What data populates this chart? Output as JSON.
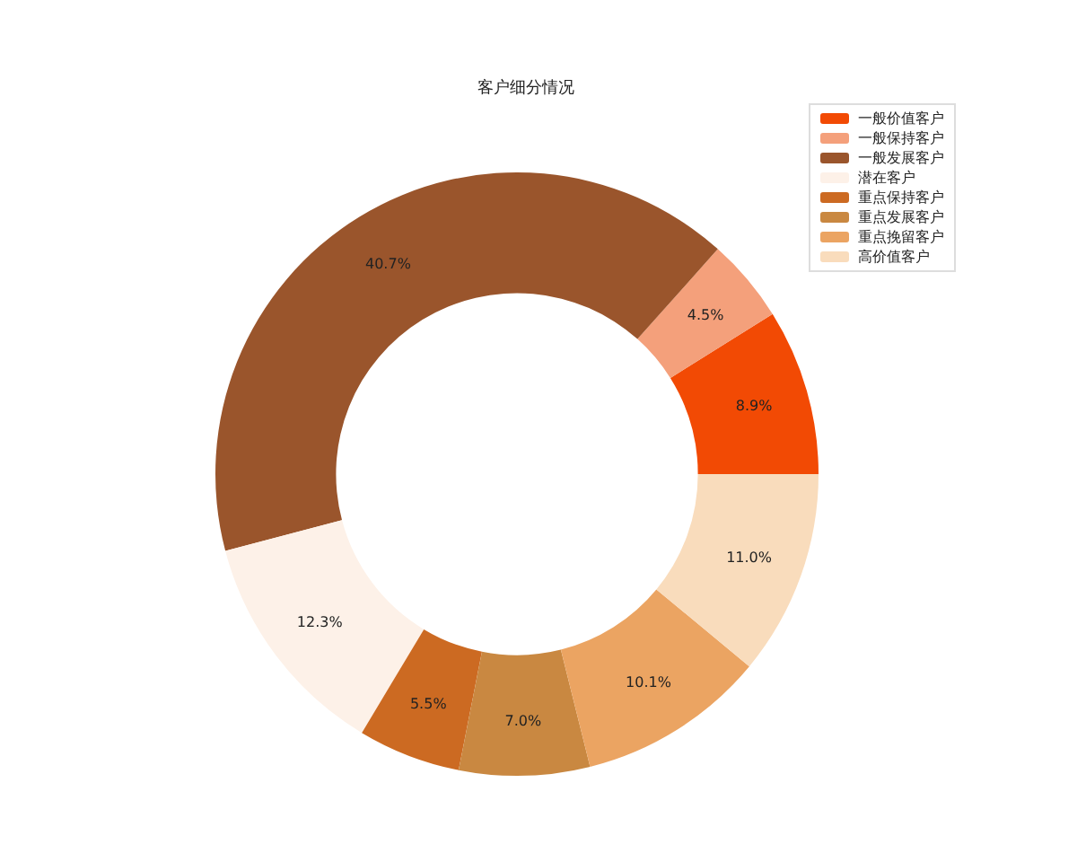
{
  "chart_data": {
    "type": "donut",
    "title": "客户细分情况",
    "categories": [
      "一般价值客户",
      "一般保持客户",
      "一般发展客户",
      "潜在客户",
      "重点保持客户",
      "重点发展客户",
      "重点挽留客户",
      "高价值客户"
    ],
    "values": [
      8.9,
      4.5,
      40.7,
      12.3,
      5.5,
      7.0,
      10.1,
      11.0
    ],
    "value_labels": [
      "8.9%",
      "4.5%",
      "40.7%",
      "12.3%",
      "5.5%",
      "7.0%",
      "10.1%",
      "11.0%"
    ],
    "colors": [
      "#f24a04",
      "#f4a07b",
      "#9a552c",
      "#fdf1e8",
      "#cc6a22",
      "#c98841",
      "#eba462",
      "#f9dcbc"
    ],
    "legend": "top right"
  }
}
